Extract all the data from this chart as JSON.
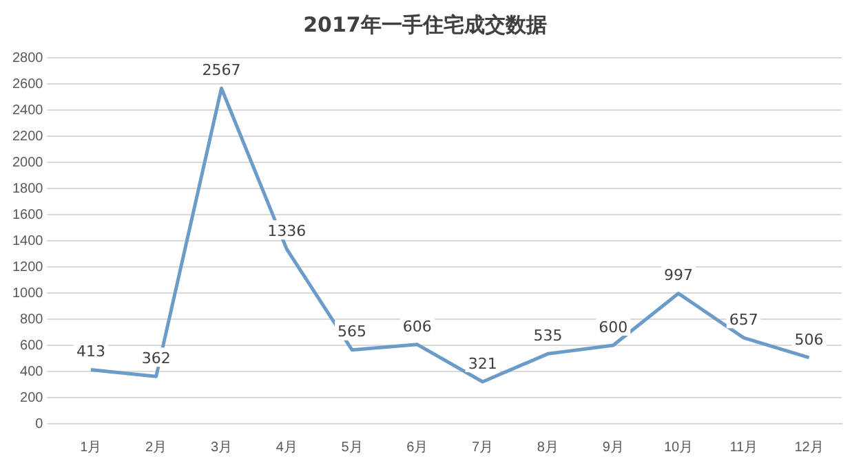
{
  "chart_data": {
    "type": "line",
    "title": "2017年一手住宅成交数据",
    "categories": [
      "1月",
      "2月",
      "3月",
      "4月",
      "5月",
      "6月",
      "7月",
      "8月",
      "9月",
      "10月",
      "11月",
      "12月"
    ],
    "series": [
      {
        "color": "#6b9bc8",
        "values": [
          413,
          362,
          2567,
          1336,
          565,
          606,
          321,
          535,
          600,
          997,
          657,
          506
        ]
      }
    ],
    "ylim": [
      0,
      2800
    ],
    "yticks": [
      0,
      200,
      400,
      600,
      800,
      1000,
      1200,
      1400,
      1600,
      1800,
      2000,
      2200,
      2400,
      2600,
      2800
    ],
    "grid": "y",
    "legend": false,
    "marker": "none",
    "line_style": "solid",
    "data_labels": true
  }
}
